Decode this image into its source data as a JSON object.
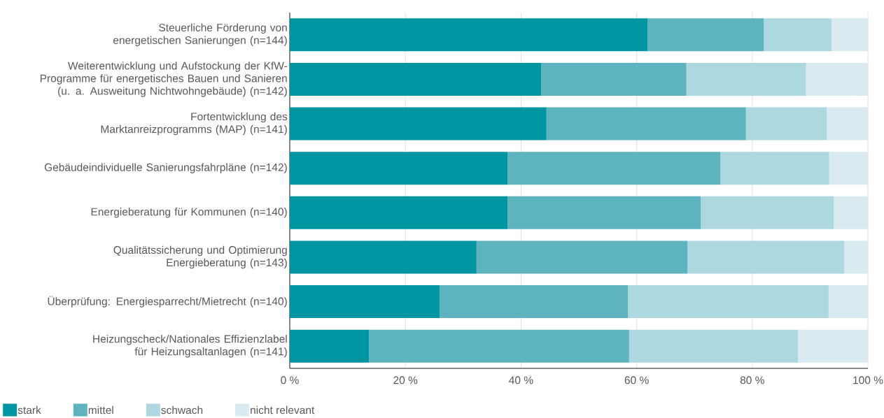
{
  "chart_data": {
    "type": "bar",
    "orientation": "horizontal",
    "stacked": true,
    "categories": [
      "Steuerliche Förderung von energetischen Sanierungen (n=144)",
      "Weiterentwicklung und Aufstockung der KfW-Programme für energetisches Bauen und Sanieren (u. a. Ausweitung Nichtwohngebäude) (n=142)",
      "Fortentwicklung des Marktanreizprogramms (MAP) (n=141)",
      "Gebäudeindividuelle Sanierungsfahrpläne (n=142)",
      "Energieberatung für Kommunen (n=140)",
      "Qualitätssicherung und Optimierung Energieberatung (n=143)",
      "Überprüfung: Energiesparrecht/Mietrecht (n=140)",
      "Heizungscheck/Nationales Effizienzlabel für Heizungsaltanlagen (n=141)"
    ],
    "series": [
      {
        "name": "stark",
        "color": "#0096a1",
        "values": [
          61.9,
          43.5,
          44.4,
          37.7,
          37.7,
          32.3,
          25.9,
          13.7
        ]
      },
      {
        "name": "mittel",
        "color": "#5db4be",
        "values": [
          20.1,
          25.1,
          34.5,
          36.8,
          33.4,
          36.5,
          32.6,
          45.0
        ]
      },
      {
        "name": "schwach",
        "color": "#add8df",
        "values": [
          11.7,
          20.7,
          14.0,
          18.8,
          23.0,
          27.1,
          34.7,
          29.2
        ]
      },
      {
        "name": "nicht relevant",
        "color": "#d9eaf0",
        "values": [
          6.3,
          10.7,
          7.1,
          6.7,
          5.9,
          4.1,
          6.8,
          12.1
        ]
      }
    ],
    "xlim": [
      0,
      100
    ],
    "xticks": [
      {
        "value": 0,
        "label": "0 %"
      },
      {
        "value": 20,
        "label": "20 %"
      },
      {
        "value": 40,
        "label": "40 %"
      },
      {
        "value": 60,
        "label": "60 %"
      },
      {
        "value": 80,
        "label": "80 %"
      },
      {
        "value": 100,
        "label": "100 %"
      }
    ],
    "grid": "x",
    "legend": "bottom left"
  }
}
